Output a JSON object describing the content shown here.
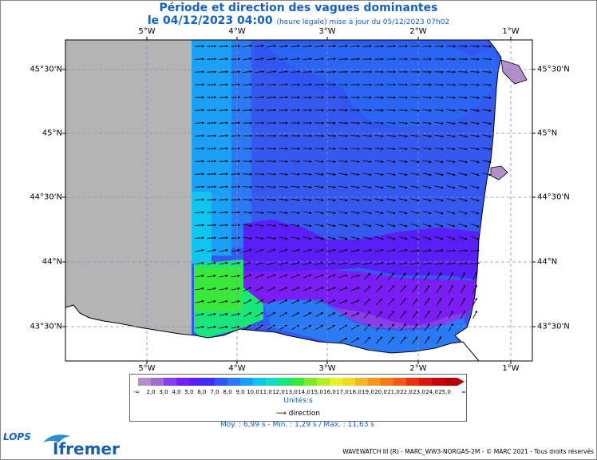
{
  "header": {
    "title": "Période et direction des vagues dominantes",
    "date_line": "le 04/12/2023 04:00",
    "update_note": "(heure légale) mise à jour du 05/12/2023 07h02"
  },
  "map": {
    "lon_labels": [
      "5°W",
      "4°W",
      "3°W",
      "2°W",
      "1°W"
    ],
    "lat_labels": [
      "45°30'N",
      "45°N",
      "44°30'N",
      "44°N",
      "43°30'N"
    ],
    "colors": {
      "no_data": "#b4b4b4",
      "land": "#ffffff",
      "coast": "#000000",
      "grid": "#8888cc",
      "arrow": "#000000"
    }
  },
  "colorbar": {
    "min_symbol": "-∞",
    "max_symbol": "∞",
    "ticks": [
      "2,0",
      "3,0",
      "4,0",
      "5,0",
      "6,0",
      "7,0",
      "8,0",
      "9,0",
      "10,0",
      "11,0",
      "12,0",
      "13,0",
      "14,0",
      "15,0",
      "16,0",
      "17,0",
      "18,0",
      "19,0",
      "20,0",
      "21,0",
      "22,0",
      "23,0",
      "24,0",
      "25,0"
    ],
    "colors": [
      "#b38fc9",
      "#a06ed2",
      "#8a3dea",
      "#7a1ef5",
      "#5a1ef8",
      "#3c30f5",
      "#2f55f2",
      "#2a7af5",
      "#1aa0f5",
      "#10c4f0",
      "#10dcc8",
      "#18e67a",
      "#3ae83c",
      "#7aea2a",
      "#b4ee28",
      "#e8f02a",
      "#f5d828",
      "#f5b423",
      "#f5961e",
      "#f57819",
      "#f05a14",
      "#e8320f",
      "#dc140a",
      "#c80808",
      "#b40000"
    ],
    "units": "Unités:s",
    "direction_label": "direction"
  },
  "stats": "Moy. : 6,99 s   -   Min. : 1,29 s / Max. : 11,63 s",
  "logos": {
    "lops": "LOPS",
    "ifremer": "Ifremer"
  },
  "credit": "WAVEWATCH III (R) - MARC_WW3-NORGAS-2M - © MARC 2021 - Tous droits réservés"
}
